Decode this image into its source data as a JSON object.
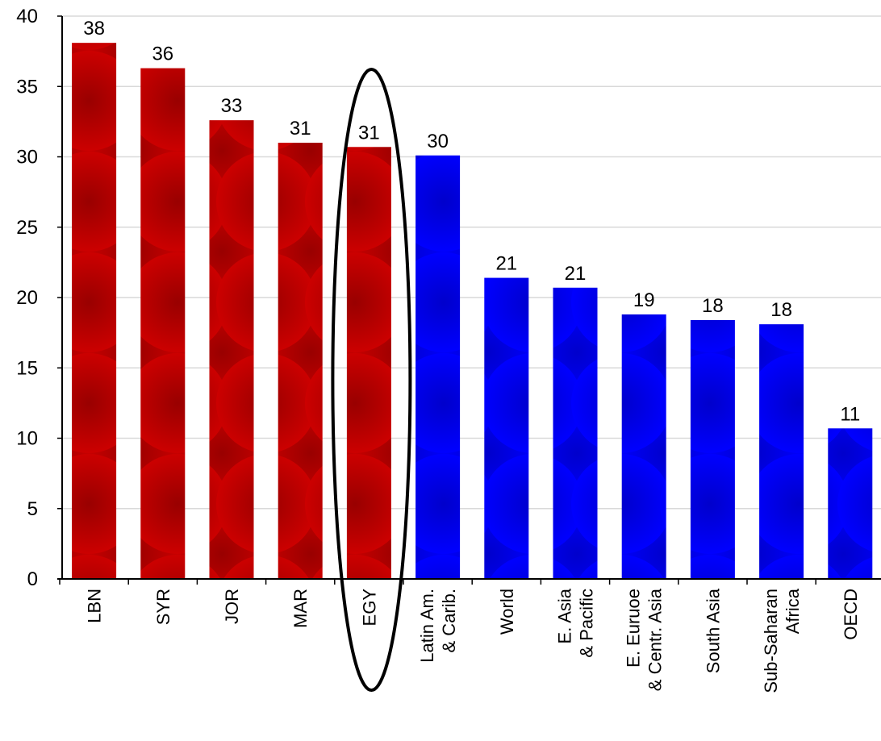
{
  "chart_data": {
    "type": "bar",
    "categories": [
      [
        "LBN"
      ],
      [
        "SYR"
      ],
      [
        "JOR"
      ],
      [
        "MAR"
      ],
      [
        "EGY"
      ],
      [
        "Latin Am.",
        "& Carib."
      ],
      [
        "World"
      ],
      [
        "E. Asia",
        "& Pacific"
      ],
      [
        "E. Euruoe",
        "& Centr. Asia"
      ],
      [
        "South Asia"
      ],
      [
        "Sub-Saharan",
        "Africa"
      ],
      [
        "OECD"
      ]
    ],
    "values": [
      38.1,
      36.3,
      32.6,
      31.0,
      30.7,
      30.1,
      21.4,
      20.7,
      18.8,
      18.4,
      18.1,
      10.7
    ],
    "data_labels": [
      "38",
      "36",
      "33",
      "31",
      "31",
      "30",
      "21",
      "21",
      "19",
      "18",
      "18",
      "11"
    ],
    "bar_groups": [
      "mena",
      "mena",
      "mena",
      "mena",
      "mena",
      "region",
      "region",
      "region",
      "region",
      "region",
      "region",
      "region"
    ],
    "ylim": [
      0,
      40
    ],
    "yticks": [
      "0",
      "5",
      "10",
      "15",
      "20",
      "25",
      "30",
      "35",
      "40"
    ],
    "grid": "horizontal",
    "highlighted_category": "EGY",
    "title": "",
    "xlabel": "",
    "ylabel": "",
    "colors": {
      "mena": "#cc0000",
      "mena_dark": "#990000",
      "region": "#0000ff",
      "region_dark": "#0000cc",
      "pattern_background": "#000000",
      "gridline": "#d9d9d9",
      "axis": "#000000"
    }
  }
}
